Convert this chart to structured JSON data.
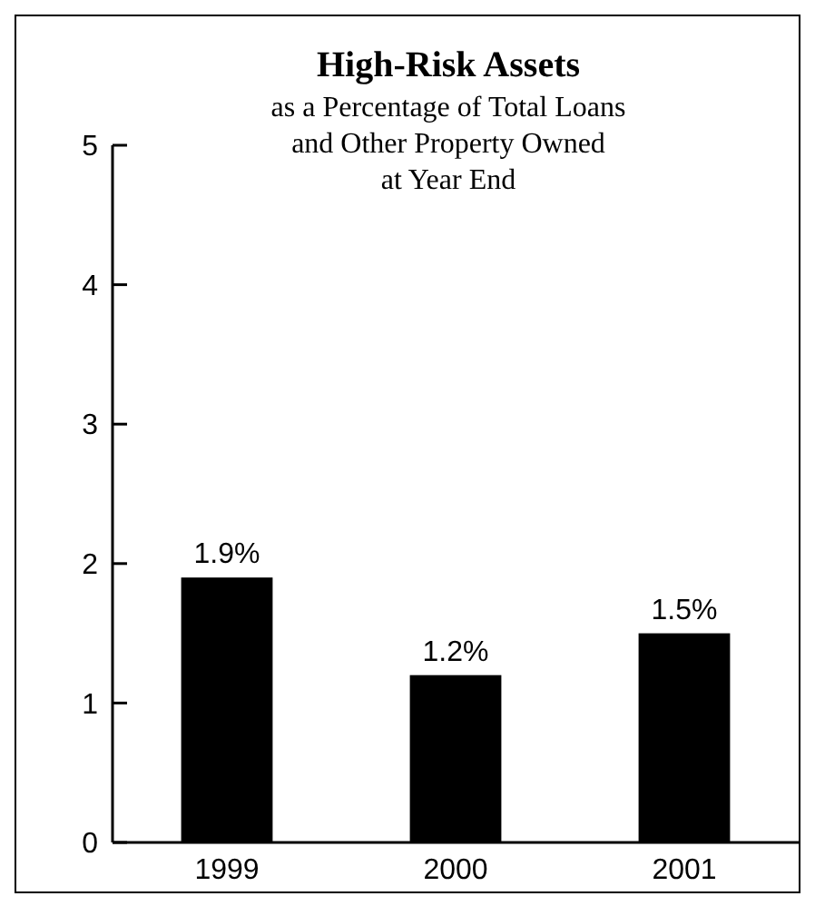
{
  "chart_data": {
    "type": "bar",
    "title": "High-Risk Assets",
    "subtitle": "as a Percentage of Total Loans\nand Other Property Owned\nat Year End",
    "categories": [
      "1999",
      "2000",
      "2001"
    ],
    "values": [
      1.9,
      1.2,
      1.5
    ],
    "value_labels": [
      "1.9%",
      "1.2%",
      "1.5%"
    ],
    "color": "#000000",
    "ylim": [
      0,
      5
    ],
    "yticks": [
      0,
      1,
      2,
      3,
      4,
      5
    ],
    "grid": false
  }
}
